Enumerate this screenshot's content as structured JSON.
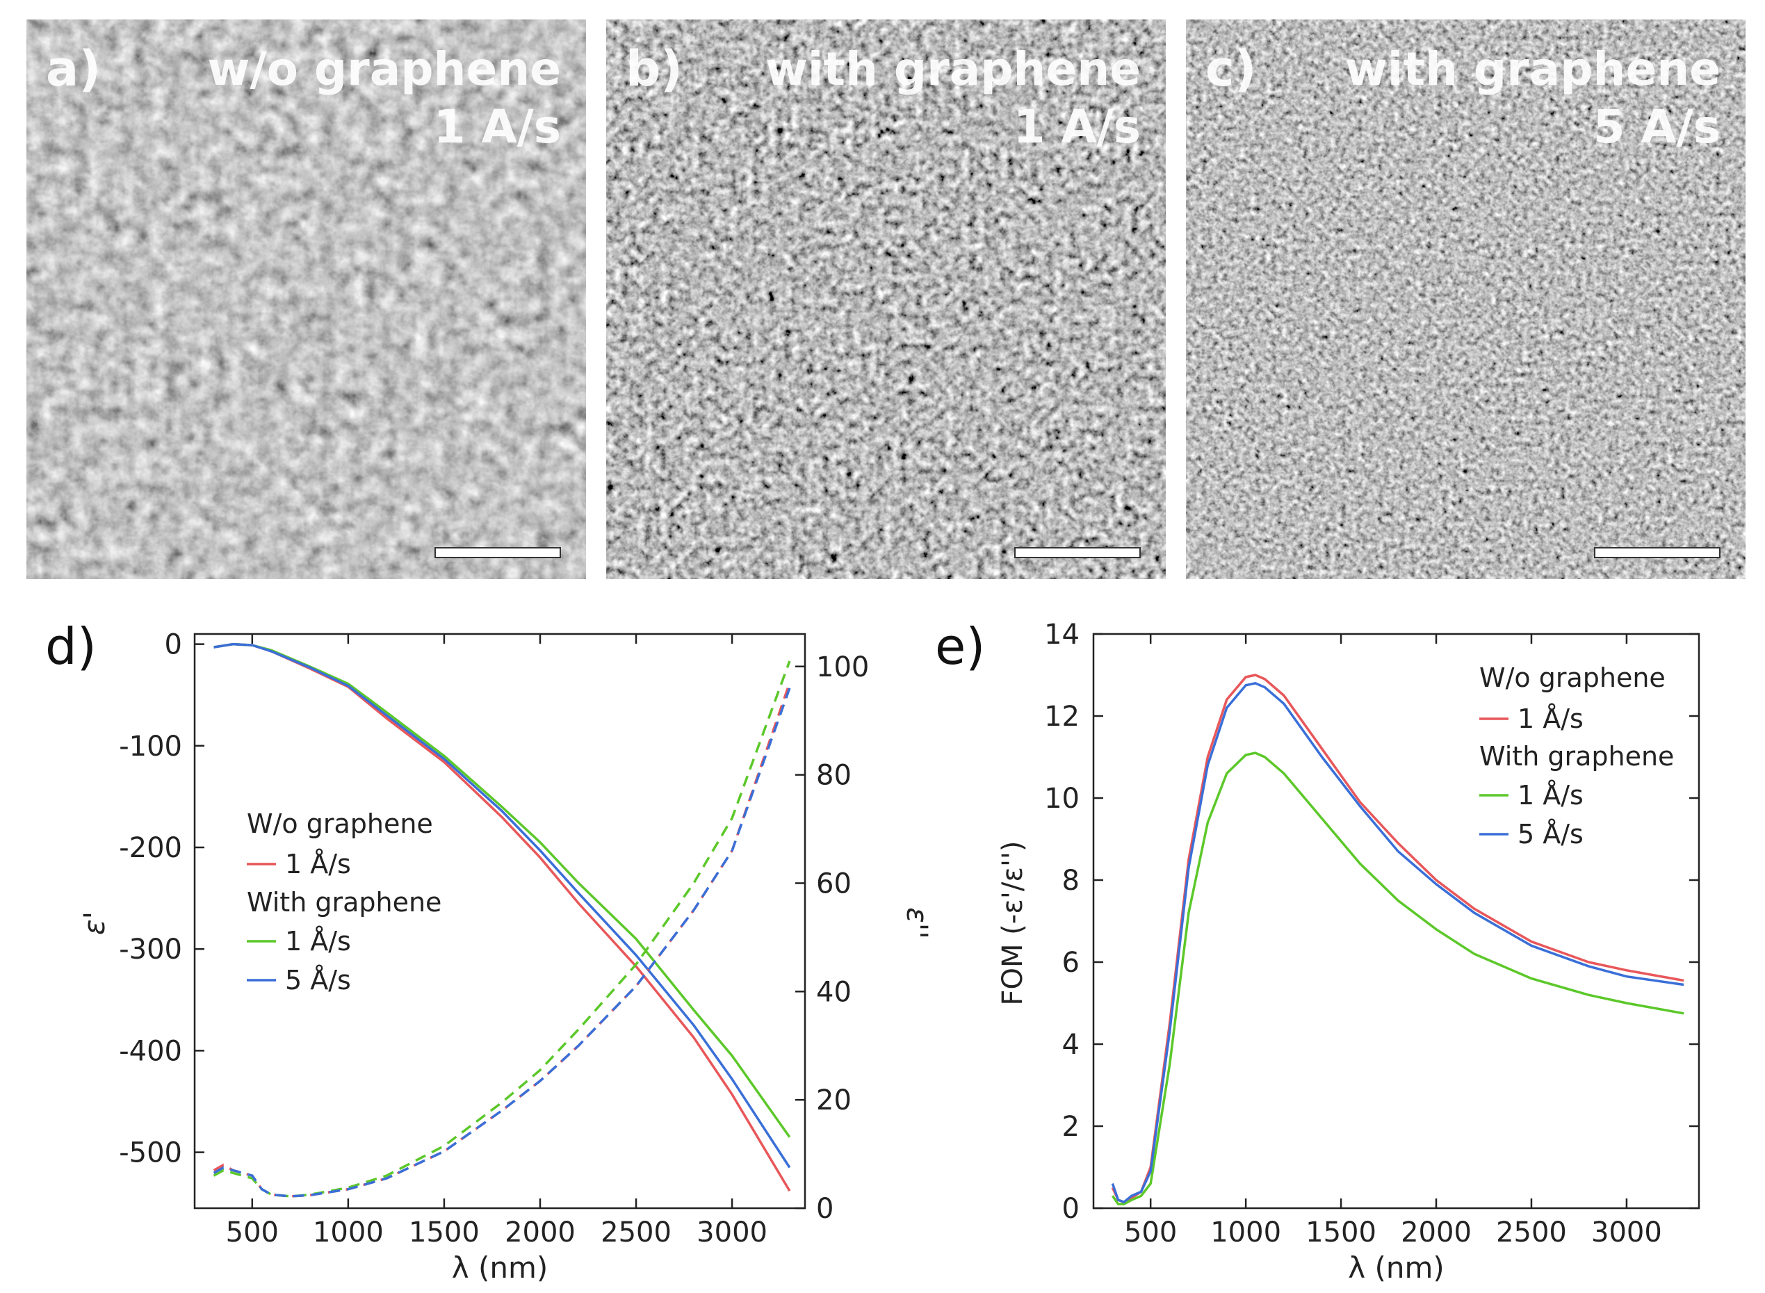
{
  "sem_panels": [
    {
      "letter": "a)",
      "line1": "w/o graphene",
      "line2": "1 A/s"
    },
    {
      "letter": "b)",
      "line1": "with graphene",
      "line2": "1 A/s"
    },
    {
      "letter": "c)",
      "line1": "with graphene",
      "line2": "5 A/s"
    }
  ],
  "colors": {
    "w_o_1": "#e8575a",
    "with_1": "#5cc82a",
    "with_5": "#3a6fd8"
  },
  "chart_data": [
    {
      "panel": "d)",
      "type": "line",
      "xlabel": "λ (nm)",
      "ylabel_left": "ε'",
      "ylabel_right": "ε''",
      "xlim": [
        200,
        3380
      ],
      "ylim_left": [
        -555,
        10
      ],
      "ylim_right": [
        0,
        106
      ],
      "xticks": [
        500,
        1000,
        1500,
        2000,
        2500,
        3000
      ],
      "yticks_left": [
        0,
        -100,
        -200,
        -300,
        -400,
        -500
      ],
      "yticks_right": [
        0,
        20,
        40,
        60,
        80,
        100
      ],
      "legend": {
        "group1": "W/o graphene",
        "item1": "1 Å/s",
        "group2": "With graphene",
        "item2": "1 Å/s",
        "item3": "5 Å/s"
      },
      "series": [
        {
          "name": "W/o graphene 1 Å/s",
          "color_key": "w_o_1",
          "kind": "eps_real",
          "x": [
            300,
            400,
            500,
            600,
            800,
            1000,
            1200,
            1500,
            1800,
            2000,
            2200,
            2500,
            2800,
            3000,
            3300
          ],
          "y": [
            -3,
            0,
            -1,
            -7,
            -24,
            -42,
            -73,
            -116,
            -170,
            -210,
            -255,
            -317,
            -387,
            -443,
            -538
          ]
        },
        {
          "name": "With graphene 1 Å/s",
          "color_key": "with_1",
          "kind": "eps_real",
          "x": [
            300,
            400,
            500,
            600,
            800,
            1000,
            1200,
            1500,
            1800,
            2000,
            2200,
            2500,
            2800,
            3000,
            3300
          ],
          "y": [
            -3,
            0,
            -1,
            -6,
            -22,
            -39,
            -67,
            -110,
            -160,
            -195,
            -235,
            -290,
            -360,
            -405,
            -485
          ]
        },
        {
          "name": "With graphene 5 Å/s",
          "color_key": "with_5",
          "kind": "eps_real",
          "x": [
            300,
            400,
            500,
            600,
            800,
            1000,
            1200,
            1500,
            1800,
            2000,
            2200,
            2500,
            2800,
            3000,
            3300
          ],
          "y": [
            -3,
            0,
            -1,
            -7,
            -23,
            -41,
            -70,
            -113,
            -164,
            -203,
            -245,
            -306,
            -375,
            -428,
            -515
          ]
        },
        {
          "name": "W/o graphene 1 Å/s",
          "color_key": "w_o_1",
          "kind": "eps_imag",
          "x": [
            300,
            350,
            400,
            450,
            500,
            550,
            600,
            700,
            800,
            1000,
            1200,
            1500,
            1800,
            2000,
            2200,
            2500,
            2800,
            3000,
            3300
          ],
          "y": [
            7,
            8,
            7,
            6.5,
            6,
            3.5,
            2.5,
            2.2,
            2.4,
            3.5,
            5.5,
            10.5,
            18,
            23.5,
            30,
            41,
            55,
            66,
            97
          ]
        },
        {
          "name": "With graphene 1 Å/s",
          "color_key": "with_1",
          "kind": "eps_imag",
          "x": [
            300,
            350,
            400,
            450,
            500,
            550,
            600,
            700,
            800,
            1000,
            1200,
            1500,
            1800,
            2000,
            2200,
            2500,
            2800,
            3000,
            3300
          ],
          "y": [
            6,
            7,
            6.5,
            6,
            5.5,
            3.5,
            2.5,
            2.2,
            2.5,
            3.8,
            6,
            11.5,
            19.5,
            25.5,
            33,
            45,
            60,
            72,
            101
          ]
        },
        {
          "name": "With graphene 5 Å/s",
          "color_key": "with_5",
          "kind": "eps_imag",
          "x": [
            300,
            350,
            400,
            450,
            500,
            550,
            600,
            700,
            800,
            1000,
            1200,
            1500,
            1800,
            2000,
            2200,
            2500,
            2800,
            3000,
            3300
          ],
          "y": [
            6.5,
            7.5,
            7,
            6.5,
            6,
            3.5,
            2.5,
            2.2,
            2.4,
            3.5,
            5.5,
            10.5,
            18,
            23.5,
            30,
            41,
            55,
            66,
            96
          ]
        }
      ]
    },
    {
      "panel": "e)",
      "type": "line",
      "xlabel": "λ (nm)",
      "ylabel": "FOM (-ε'/ε'')",
      "xlim": [
        200,
        3380
      ],
      "ylim": [
        0,
        14
      ],
      "xticks": [
        500,
        1000,
        1500,
        2000,
        2500,
        3000
      ],
      "yticks": [
        0,
        2,
        4,
        6,
        8,
        10,
        12,
        14
      ],
      "legend": {
        "group1": "W/o graphene",
        "item1": "1 Å/s",
        "group2": "With graphene",
        "item2": "1 Å/s",
        "item3": "5 Å/s"
      },
      "series": [
        {
          "name": "W/o graphene 1 Å/s",
          "color_key": "w_o_1",
          "x": [
            300,
            330,
            360,
            400,
            450,
            500,
            600,
            700,
            800,
            900,
            1000,
            1050,
            1100,
            1200,
            1400,
            1600,
            1800,
            2000,
            2200,
            2500,
            2800,
            3000,
            3300
          ],
          "y": [
            0.5,
            0.2,
            0.15,
            0.25,
            0.4,
            1.0,
            4.5,
            8.5,
            11.0,
            12.4,
            12.95,
            13.0,
            12.9,
            12.5,
            11.2,
            9.9,
            8.9,
            8.0,
            7.3,
            6.5,
            6.0,
            5.8,
            5.55
          ]
        },
        {
          "name": "With graphene 1 Å/s",
          "color_key": "with_1",
          "x": [
            300,
            330,
            360,
            400,
            450,
            500,
            600,
            700,
            800,
            900,
            1000,
            1050,
            1100,
            1200,
            1400,
            1600,
            1800,
            2000,
            2200,
            2500,
            2800,
            3000,
            3300
          ],
          "y": [
            0.3,
            0.1,
            0.1,
            0.2,
            0.3,
            0.6,
            3.5,
            7.2,
            9.4,
            10.6,
            11.05,
            11.1,
            11.0,
            10.6,
            9.5,
            8.4,
            7.5,
            6.8,
            6.2,
            5.6,
            5.2,
            5.0,
            4.75
          ]
        },
        {
          "name": "With graphene 5 Å/s",
          "color_key": "with_5",
          "x": [
            300,
            330,
            360,
            400,
            450,
            500,
            600,
            700,
            800,
            900,
            1000,
            1050,
            1100,
            1200,
            1400,
            1600,
            1800,
            2000,
            2200,
            2500,
            2800,
            3000,
            3300
          ],
          "y": [
            0.6,
            0.2,
            0.15,
            0.3,
            0.4,
            0.9,
            4.3,
            8.3,
            10.8,
            12.2,
            12.75,
            12.8,
            12.7,
            12.3,
            11.0,
            9.8,
            8.7,
            7.9,
            7.2,
            6.4,
            5.9,
            5.65,
            5.45
          ]
        }
      ]
    }
  ]
}
